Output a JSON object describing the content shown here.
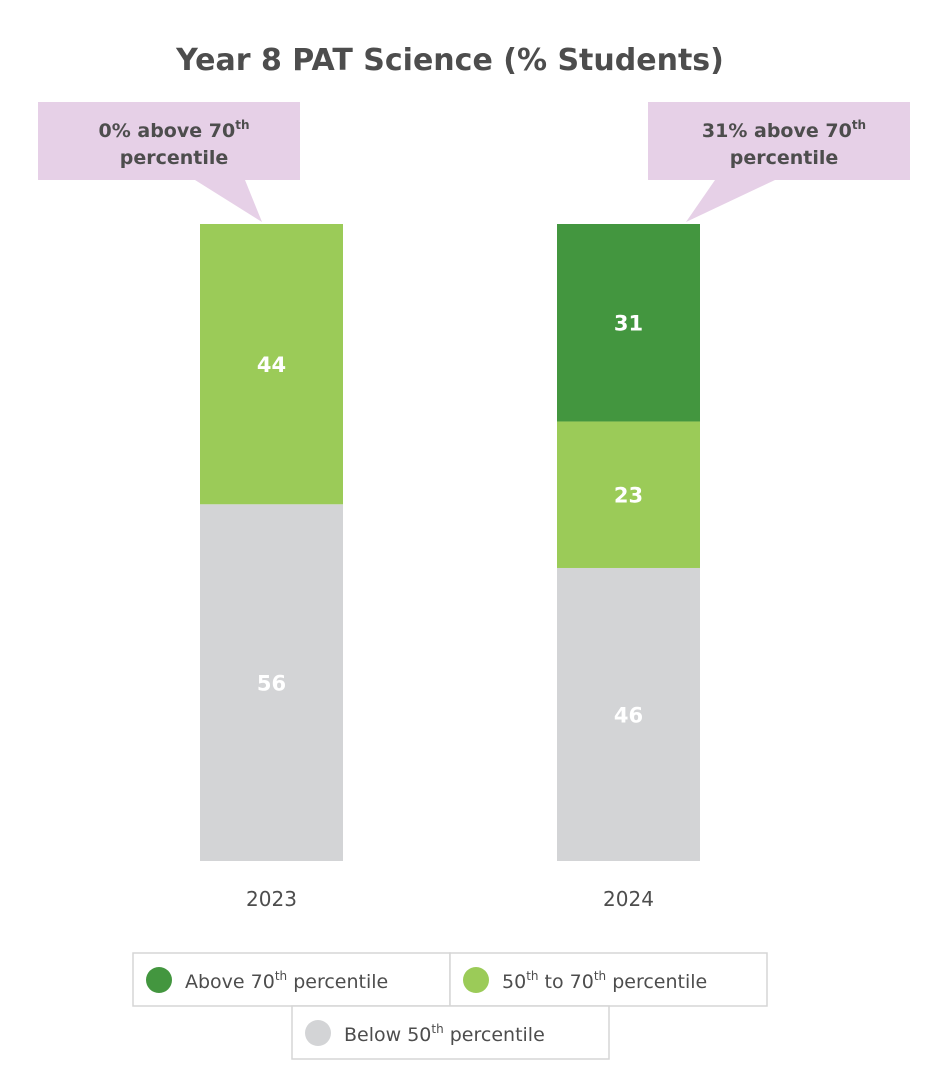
{
  "chart_data": {
    "type": "bar",
    "stacked": true,
    "title": "Year 8 PAT Science (% Students)",
    "categories": [
      "2023",
      "2024"
    ],
    "series": [
      {
        "name": "Above 70th percentile",
        "name_base": "Above 70",
        "name_sup": "th",
        "name_rest": " percentile",
        "color": "#43963f",
        "values": [
          0,
          31
        ]
      },
      {
        "name": "50th to 70th percentile",
        "name_base": "50",
        "name_sup": "th",
        "name_rest": " to 70",
        "name_sup2": "th",
        "name_rest2": " percentile",
        "color": "#9bcb58",
        "values": [
          44,
          23
        ]
      },
      {
        "name": "Below 50th percentile",
        "name_base": "Below 50",
        "name_sup": "th",
        "name_rest": " percentile",
        "color": "#d3d4d6",
        "values": [
          56,
          46
        ]
      }
    ],
    "ylim": [
      0,
      100
    ],
    "callouts": [
      {
        "category": "2023",
        "line1_base": "0% above 70",
        "line1_sup": "th",
        "line2": "percentile"
      },
      {
        "category": "2024",
        "line1_base": "31% above 70",
        "line1_sup": "th",
        "line2": "percentile"
      }
    ],
    "callout_color": "#e6d0e7",
    "legend_position": "bottom"
  }
}
